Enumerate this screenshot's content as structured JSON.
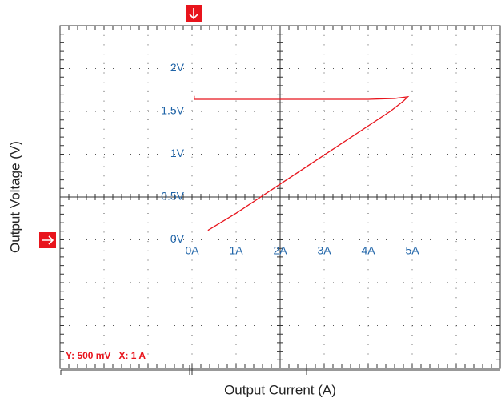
{
  "chart_data": {
    "type": "line",
    "x_label": "Output Current (A)",
    "y_label": "Output Voltage (V)",
    "annotation": "Y: 500 mV   X: 1 A",
    "xlim": [
      -3,
      7
    ],
    "ylim": [
      -1.5,
      2.5
    ],
    "xticks": [
      {
        "value": 0,
        "label": "0A"
      },
      {
        "value": 1,
        "label": "1A"
      },
      {
        "value": 2,
        "label": "2A"
      },
      {
        "value": 3,
        "label": "3A"
      },
      {
        "value": 4,
        "label": "4A"
      },
      {
        "value": 5,
        "label": "5A"
      }
    ],
    "yticks": [
      {
        "value": 0,
        "label": "0V"
      },
      {
        "value": 0.5,
        "label": "0.5V"
      },
      {
        "value": 1,
        "label": "1V"
      },
      {
        "value": 1.5,
        "label": "1.5V"
      },
      {
        "value": 2,
        "label": "2V"
      }
    ],
    "grid": true,
    "series": [
      {
        "color": "#e8141c",
        "x": [
          0.05,
          0.05,
          0.5,
          2,
          4,
          4.6,
          4.9,
          4.8,
          4.5,
          3,
          2,
          1,
          0.36
        ],
        "values": [
          1.68,
          1.64,
          1.64,
          1.64,
          1.64,
          1.65,
          1.67,
          1.62,
          1.5,
          0.99,
          0.65,
          0.31,
          0.11
        ]
      }
    ]
  }
}
